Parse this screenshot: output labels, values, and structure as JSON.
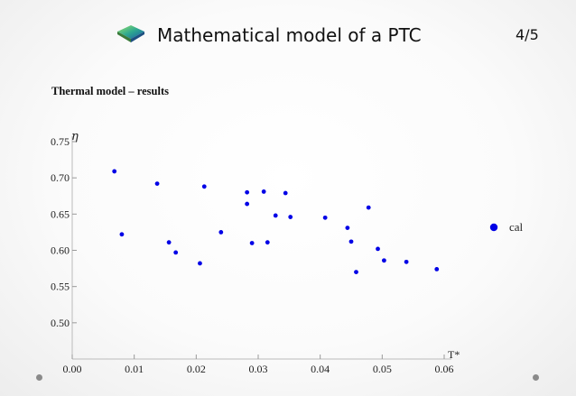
{
  "slide": {
    "title": "Mathematical model of a PTC",
    "page": "4/5",
    "subtitle": "Thermal model – results",
    "logo_icon": "green-gradient-diamond-icon",
    "corner_dots": "grey-dot-icon"
  },
  "chart_data": {
    "type": "scatter",
    "title": "",
    "xlabel": "T*",
    "ylabel": "η",
    "xlim": [
      0,
      0.06
    ],
    "ylim": [
      0.45,
      0.75
    ],
    "xticks": [
      "0.00",
      "0.01",
      "0.02",
      "0.03",
      "0.04",
      "0.05",
      "0.06"
    ],
    "yticks": [
      "0.50",
      "0.55",
      "0.60",
      "0.65",
      "0.70",
      "0.75"
    ],
    "grid": false,
    "legend_position": "right",
    "series": [
      {
        "name": "cal",
        "color": "#0000e6",
        "points": [
          [
            0.0068,
            0.709
          ],
          [
            0.008,
            0.622
          ],
          [
            0.0137,
            0.692
          ],
          [
            0.0156,
            0.611
          ],
          [
            0.0167,
            0.597
          ],
          [
            0.0206,
            0.582
          ],
          [
            0.0213,
            0.688
          ],
          [
            0.024,
            0.625
          ],
          [
            0.0282,
            0.68
          ],
          [
            0.0282,
            0.664
          ],
          [
            0.029,
            0.61
          ],
          [
            0.0309,
            0.681
          ],
          [
            0.0315,
            0.611
          ],
          [
            0.0328,
            0.648
          ],
          [
            0.0344,
            0.679
          ],
          [
            0.0352,
            0.646
          ],
          [
            0.0408,
            0.645
          ],
          [
            0.0444,
            0.631
          ],
          [
            0.045,
            0.612
          ],
          [
            0.0458,
            0.57
          ],
          [
            0.0478,
            0.659
          ],
          [
            0.0493,
            0.602
          ],
          [
            0.0503,
            0.586
          ],
          [
            0.0539,
            0.584
          ],
          [
            0.0588,
            0.574
          ]
        ]
      }
    ]
  }
}
